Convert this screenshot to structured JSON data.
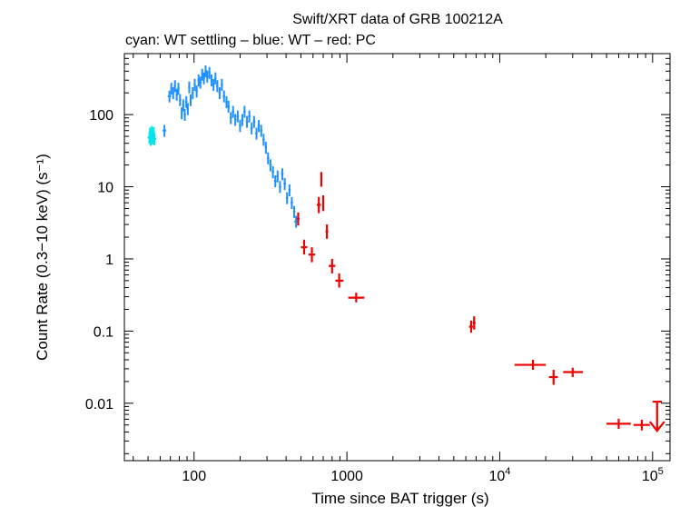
{
  "chart_data": {
    "type": "scatter",
    "title": "Swift/XRT data of GRB 100212A",
    "subtitle": "cyan: WT settling – blue: WT – red: PC",
    "xlabel": "Time since BAT trigger (s)",
    "ylabel": "Count Rate (0.3−10 keV) (s⁻¹)",
    "xscale": "log",
    "yscale": "log",
    "xlim": [
      35,
      130000
    ],
    "ylim": [
      0.0016,
      700
    ],
    "x_ticks": [
      {
        "value": 100,
        "label": "100"
      },
      {
        "value": 1000,
        "label": "1000"
      },
      {
        "value": 10000,
        "base": "10",
        "exp": "4"
      },
      {
        "value": 100000,
        "base": "10",
        "exp": "5"
      }
    ],
    "y_ticks": [
      {
        "value": 100,
        "label": "100"
      },
      {
        "value": 10,
        "label": "10"
      },
      {
        "value": 1,
        "label": "1"
      },
      {
        "value": 0.1,
        "label": "0.1"
      },
      {
        "value": 0.01,
        "label": "0.01"
      }
    ],
    "colors": {
      "wt_settling": "#00e5ee",
      "wt": "#1e90ff",
      "pc": "#ee0000"
    },
    "series": [
      {
        "name": "WT settling",
        "color": "#00e5ee",
        "points": [
          {
            "x": 51,
            "y": 48
          },
          {
            "x": 51.5,
            "y": 55
          },
          {
            "x": 52,
            "y": 45
          },
          {
            "x": 52.5,
            "y": 52
          },
          {
            "x": 53,
            "y": 58
          },
          {
            "x": 53.5,
            "y": 47
          },
          {
            "x": 54,
            "y": 50
          },
          {
            "x": 54.5,
            "y": 56
          },
          {
            "x": 55,
            "y": 46
          }
        ]
      },
      {
        "name": "WT",
        "color": "#1e90ff",
        "points": [
          {
            "x": 64,
            "y": 60
          },
          {
            "x": 69,
            "y": 180
          },
          {
            "x": 71,
            "y": 230
          },
          {
            "x": 73,
            "y": 200
          },
          {
            "x": 75,
            "y": 250
          },
          {
            "x": 77,
            "y": 190
          },
          {
            "x": 79,
            "y": 230
          },
          {
            "x": 81,
            "y": 160
          },
          {
            "x": 83,
            "y": 105
          },
          {
            "x": 85,
            "y": 135
          },
          {
            "x": 87,
            "y": 100
          },
          {
            "x": 89,
            "y": 150
          },
          {
            "x": 91,
            "y": 120
          },
          {
            "x": 93,
            "y": 240
          },
          {
            "x": 95,
            "y": 160
          },
          {
            "x": 98,
            "y": 200
          },
          {
            "x": 101,
            "y": 260
          },
          {
            "x": 104,
            "y": 210
          },
          {
            "x": 107,
            "y": 300
          },
          {
            "x": 110,
            "y": 280
          },
          {
            "x": 113,
            "y": 360
          },
          {
            "x": 116,
            "y": 320
          },
          {
            "x": 119,
            "y": 400
          },
          {
            "x": 122,
            "y": 340
          },
          {
            "x": 126,
            "y": 380
          },
          {
            "x": 130,
            "y": 300
          },
          {
            "x": 134,
            "y": 260
          },
          {
            "x": 138,
            "y": 320
          },
          {
            "x": 142,
            "y": 250
          },
          {
            "x": 147,
            "y": 200
          },
          {
            "x": 152,
            "y": 260
          },
          {
            "x": 157,
            "y": 180
          },
          {
            "x": 163,
            "y": 150
          },
          {
            "x": 168,
            "y": 130
          },
          {
            "x": 174,
            "y": 90
          },
          {
            "x": 180,
            "y": 110
          },
          {
            "x": 186,
            "y": 85
          },
          {
            "x": 193,
            "y": 95
          },
          {
            "x": 200,
            "y": 70
          },
          {
            "x": 207,
            "y": 85
          },
          {
            "x": 214,
            "y": 110
          },
          {
            "x": 222,
            "y": 80
          },
          {
            "x": 230,
            "y": 95
          },
          {
            "x": 238,
            "y": 65
          },
          {
            "x": 247,
            "y": 80
          },
          {
            "x": 256,
            "y": 55
          },
          {
            "x": 265,
            "y": 70
          },
          {
            "x": 275,
            "y": 60
          },
          {
            "x": 285,
            "y": 45
          },
          {
            "x": 295,
            "y": 35
          },
          {
            "x": 305,
            "y": 25
          },
          {
            "x": 316,
            "y": 20
          },
          {
            "x": 328,
            "y": 16
          },
          {
            "x": 340,
            "y": 12
          },
          {
            "x": 352,
            "y": 14
          },
          {
            "x": 365,
            "y": 10
          },
          {
            "x": 378,
            "y": 15
          },
          {
            "x": 392,
            "y": 11
          },
          {
            "x": 406,
            "y": 7
          },
          {
            "x": 421,
            "y": 9
          },
          {
            "x": 436,
            "y": 6
          },
          {
            "x": 452,
            "y": 4.5
          },
          {
            "x": 465,
            "y": 3.3
          }
        ]
      },
      {
        "name": "PC",
        "color": "#ee0000",
        "points": [
          {
            "x": 480,
            "y": 3.6,
            "xlo": 470,
            "xhi": 490,
            "ylo": 2.9,
            "yhi": 4.4
          },
          {
            "x": 525,
            "y": 1.45,
            "xlo": 500,
            "xhi": 550,
            "ylo": 1.15,
            "yhi": 1.85
          },
          {
            "x": 590,
            "y": 1.15,
            "xlo": 560,
            "xhi": 620,
            "ylo": 0.9,
            "yhi": 1.45
          },
          {
            "x": 655,
            "y": 5.6,
            "xlo": 635,
            "xhi": 675,
            "ylo": 4.3,
            "yhi": 7.2
          },
          {
            "x": 680,
            "y": 13,
            "xlo": 672,
            "xhi": 690,
            "ylo": 10,
            "yhi": 16
          },
          {
            "x": 700,
            "y": 6,
            "xlo": 690,
            "xhi": 710,
            "ylo": 4.6,
            "yhi": 7.6
          },
          {
            "x": 740,
            "y": 2.4,
            "xlo": 725,
            "xhi": 755,
            "ylo": 1.9,
            "yhi": 3.0
          },
          {
            "x": 800,
            "y": 0.8,
            "xlo": 760,
            "xhi": 840,
            "ylo": 0.63,
            "yhi": 1.0
          },
          {
            "x": 890,
            "y": 0.5,
            "xlo": 840,
            "xhi": 950,
            "ylo": 0.4,
            "yhi": 0.63
          },
          {
            "x": 1150,
            "y": 0.29,
            "xlo": 1020,
            "xhi": 1300,
            "ylo": 0.25,
            "yhi": 0.34
          },
          {
            "x": 6500,
            "y": 0.115,
            "xlo": 6300,
            "xhi": 6700,
            "ylo": 0.095,
            "yhi": 0.14
          },
          {
            "x": 6800,
            "y": 0.13,
            "xlo": 6650,
            "xhi": 6950,
            "ylo": 0.105,
            "yhi": 0.16
          },
          {
            "x": 16500,
            "y": 0.034,
            "xlo": 12500,
            "xhi": 20000,
            "ylo": 0.029,
            "yhi": 0.04
          },
          {
            "x": 22500,
            "y": 0.023,
            "xlo": 21000,
            "xhi": 24000,
            "ylo": 0.018,
            "yhi": 0.029
          },
          {
            "x": 30000,
            "y": 0.027,
            "xlo": 26000,
            "xhi": 35000,
            "ylo": 0.023,
            "yhi": 0.031
          },
          {
            "x": 60000,
            "y": 0.0052,
            "xlo": 50000,
            "xhi": 72000,
            "ylo": 0.0044,
            "yhi": 0.0061
          },
          {
            "x": 85000,
            "y": 0.005,
            "xlo": 75000,
            "xhi": 96000,
            "ylo": 0.0042,
            "yhi": 0.0059
          }
        ]
      }
    ],
    "upper_limits": [
      {
        "x": 107000,
        "y": 0.0105,
        "xlo": 100000,
        "xhi": 115000,
        "color": "#ee0000"
      }
    ]
  }
}
